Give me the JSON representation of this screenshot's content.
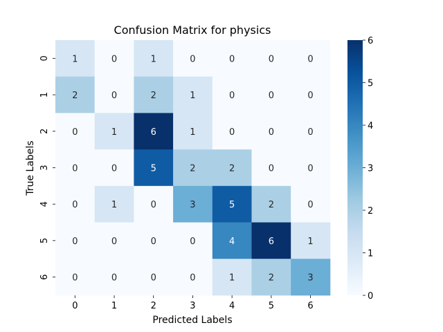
{
  "chart_data": {
    "type": "heatmap",
    "title": "Confusion Matrix for physics",
    "xlabel": "Predicted Labels",
    "ylabel": "True Labels",
    "x_categories": [
      "0",
      "1",
      "2",
      "3",
      "4",
      "5",
      "6"
    ],
    "y_categories": [
      "0",
      "1",
      "2",
      "3",
      "4",
      "5",
      "6"
    ],
    "values": [
      [
        1,
        0,
        1,
        0,
        0,
        0,
        0
      ],
      [
        2,
        0,
        2,
        1,
        0,
        0,
        0
      ],
      [
        0,
        1,
        6,
        1,
        0,
        0,
        0
      ],
      [
        0,
        0,
        5,
        2,
        2,
        0,
        0
      ],
      [
        0,
        1,
        0,
        3,
        5,
        2,
        0
      ],
      [
        0,
        0,
        0,
        0,
        4,
        6,
        1
      ],
      [
        0,
        0,
        0,
        0,
        1,
        2,
        3
      ]
    ],
    "colorbar": {
      "min": 0,
      "max": 6,
      "ticks": [
        "0",
        "1",
        "2",
        "3",
        "4",
        "5",
        "6"
      ],
      "colormap": "Blues"
    },
    "annotated": true,
    "grid": false
  }
}
